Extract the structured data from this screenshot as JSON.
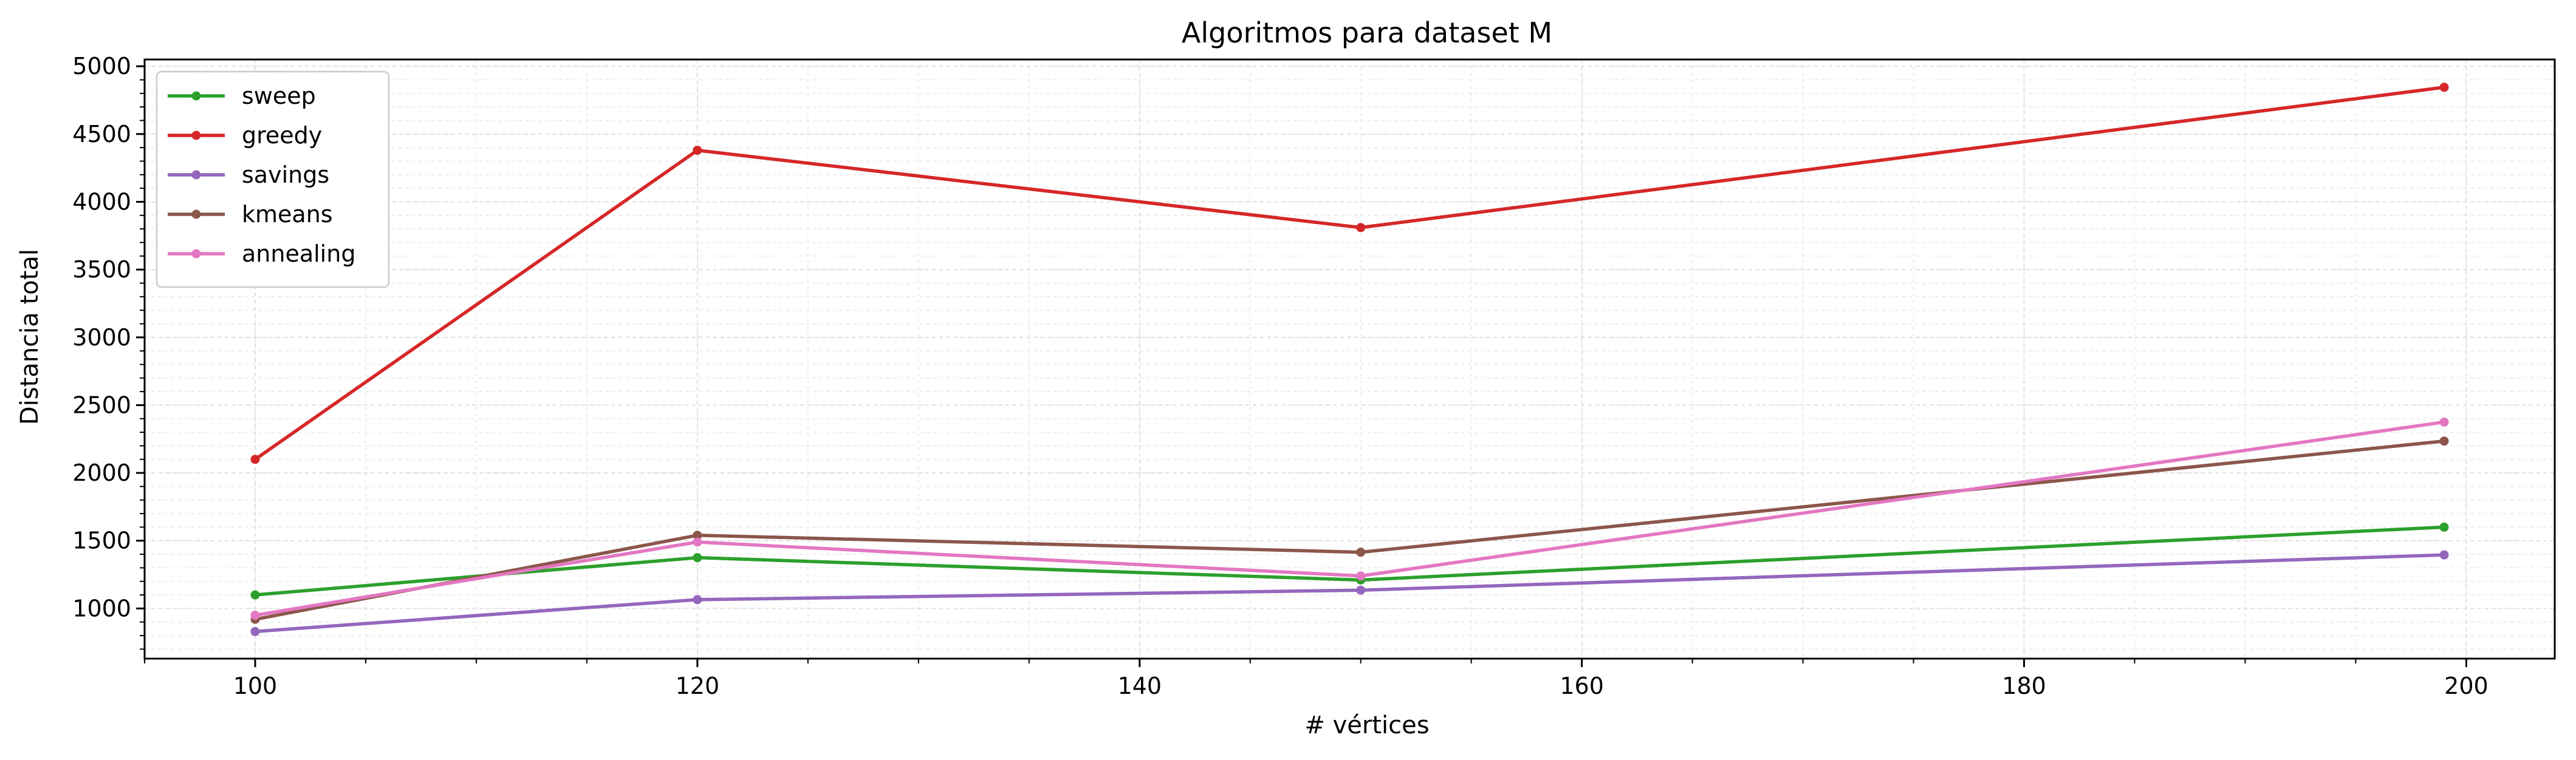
{
  "chart_data": {
    "type": "line",
    "title": "Algoritmos para dataset M",
    "xlabel": "# vértices",
    "ylabel": "Distancia total",
    "x": [
      100,
      120,
      150,
      199
    ],
    "xlim": [
      95,
      204
    ],
    "ylim": [
      630,
      5050
    ],
    "xticks": [
      100,
      120,
      140,
      160,
      180,
      200
    ],
    "yticks": [
      1000,
      1500,
      2000,
      2500,
      3000,
      3500,
      4000,
      4500,
      5000
    ],
    "grid": true,
    "legend_position": "top-left",
    "series": [
      {
        "name": "sweep",
        "color": "#2ca02c",
        "values": [
          1100,
          1375,
          1210,
          1600
        ]
      },
      {
        "name": "greedy",
        "color": "#d62728",
        "values": [
          2100,
          4380,
          3810,
          4845
        ]
      },
      {
        "name": "savings",
        "color": "#9467bd",
        "values": [
          830,
          1065,
          1135,
          1395
        ]
      },
      {
        "name": "kmeans",
        "color": "#8c564b",
        "values": [
          920,
          1540,
          1415,
          2235
        ]
      },
      {
        "name": "annealing",
        "color": "#e377c2",
        "values": [
          950,
          1490,
          1240,
          2375
        ]
      }
    ]
  }
}
